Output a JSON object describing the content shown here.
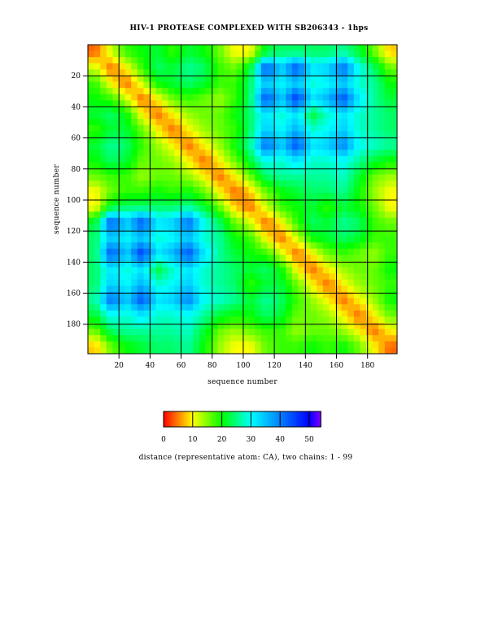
{
  "chart_data": {
    "type": "heatmap",
    "title": "HIV-1 PROTEASE COMPLEXED WITH SB206343 - 1hps",
    "xlabel": "sequence number",
    "ylabel": "sequence number",
    "xlim": [
      1,
      198
    ],
    "ylim": [
      1,
      198
    ],
    "xticks": [
      20,
      40,
      60,
      80,
      100,
      120,
      140,
      160,
      180
    ],
    "yticks": [
      20,
      40,
      60,
      80,
      100,
      120,
      140,
      160,
      180
    ],
    "grid": true,
    "block_size_residues": 10,
    "note_matrix": "approximate CA-CA distance per 10-residue block; intra-chain block A and inter-chain block C, full = [[A,C],[C^T,A]]",
    "intra_chain": [
      [
        4,
        12,
        18,
        20,
        22,
        18,
        22,
        20,
        16,
        10
      ],
      [
        12,
        4,
        10,
        18,
        24,
        22,
        26,
        24,
        18,
        16
      ],
      [
        18,
        10,
        4,
        12,
        20,
        22,
        24,
        22,
        18,
        18
      ],
      [
        20,
        18,
        12,
        4,
        10,
        16,
        18,
        16,
        14,
        18
      ],
      [
        22,
        24,
        20,
        10,
        4,
        10,
        14,
        16,
        16,
        20
      ],
      [
        18,
        22,
        22,
        16,
        10,
        4,
        10,
        14,
        16,
        18
      ],
      [
        22,
        26,
        24,
        18,
        14,
        10,
        4,
        10,
        14,
        20
      ],
      [
        20,
        24,
        22,
        16,
        16,
        14,
        10,
        4,
        10,
        16
      ],
      [
        16,
        18,
        18,
        14,
        16,
        16,
        14,
        10,
        4,
        10
      ],
      [
        10,
        16,
        18,
        18,
        20,
        18,
        20,
        16,
        10,
        4
      ]
    ],
    "inter_chain": [
      [
        10,
        22,
        24,
        24,
        24,
        24,
        26,
        22,
        16,
        8
      ],
      [
        22,
        44,
        34,
        44,
        32,
        34,
        42,
        30,
        24,
        16
      ],
      [
        24,
        34,
        30,
        34,
        28,
        30,
        34,
        28,
        26,
        20
      ],
      [
        24,
        44,
        34,
        46,
        32,
        36,
        44,
        32,
        26,
        22
      ],
      [
        24,
        32,
        28,
        32,
        22,
        28,
        32,
        28,
        26,
        24
      ],
      [
        24,
        34,
        30,
        36,
        28,
        30,
        34,
        28,
        26,
        24
      ],
      [
        26,
        42,
        34,
        44,
        32,
        34,
        40,
        30,
        28,
        26
      ],
      [
        22,
        30,
        28,
        32,
        28,
        28,
        30,
        26,
        22,
        20
      ],
      [
        16,
        24,
        26,
        26,
        26,
        26,
        28,
        22,
        16,
        14
      ],
      [
        8,
        16,
        20,
        22,
        24,
        24,
        26,
        20,
        14,
        10
      ]
    ],
    "colorbar": {
      "range": [
        0,
        54
      ],
      "ticks": [
        0,
        10,
        20,
        30,
        40,
        50
      ],
      "label": "distance (representative atom: CA), two chains: 1 - 99",
      "stops": [
        [
          0,
          "#ff0000"
        ],
        [
          10,
          "#ffff00"
        ],
        [
          20,
          "#00ff00"
        ],
        [
          30,
          "#00ffff"
        ],
        [
          40,
          "#0080ff"
        ],
        [
          50,
          "#0000ff"
        ],
        [
          54,
          "#8000ff"
        ]
      ]
    }
  }
}
